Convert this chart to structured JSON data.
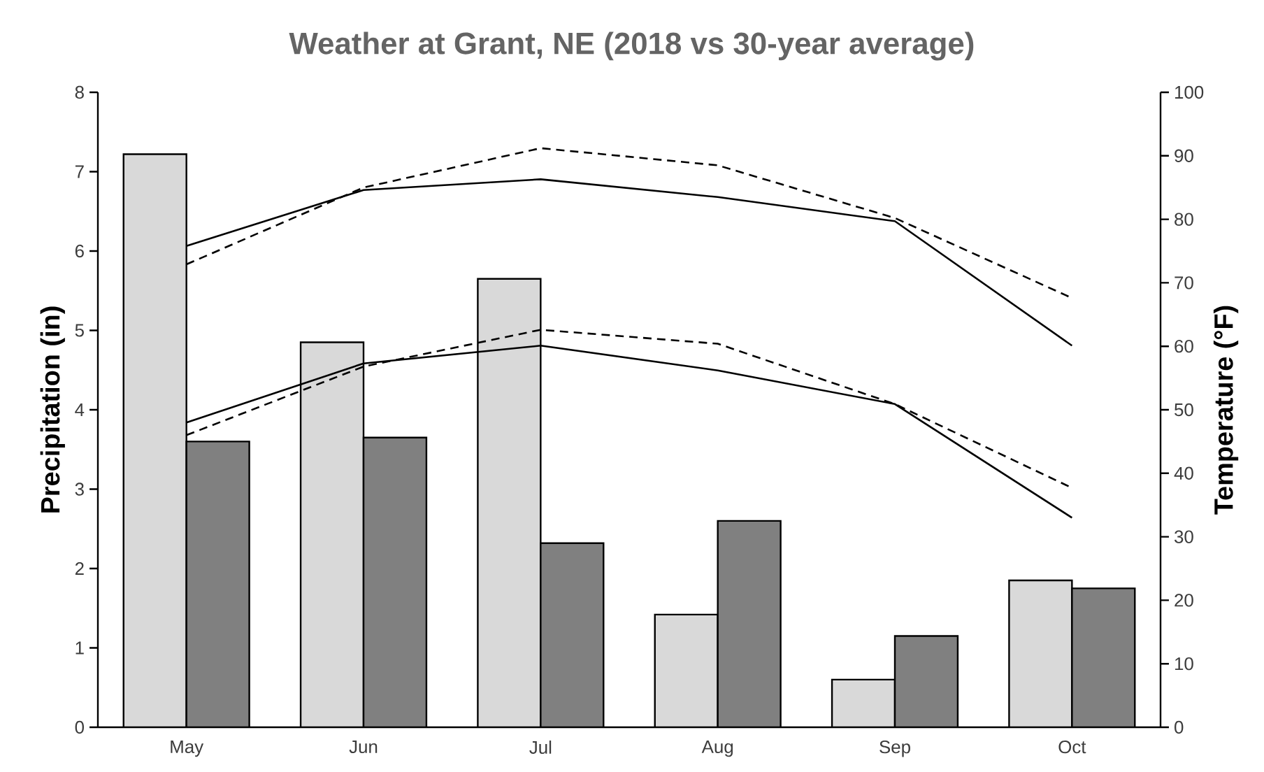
{
  "chart_data": {
    "type": "bar",
    "title": "Weather at Grant, NE (2018 vs 30-year average)",
    "ylabel": "Precipitation (in)",
    "y2label": "Temperature (°F)",
    "categories": [
      "May",
      "Jun",
      "Jul",
      "Aug",
      "Sep",
      "Oct"
    ],
    "series": [
      {
        "color": "#d9d9d9",
        "values": [
          7.22,
          4.85,
          5.65,
          1.42,
          0.6,
          1.85
        ]
      },
      {
        "color": "#808080",
        "values": [
          3.6,
          3.65,
          2.32,
          2.6,
          1.15,
          1.75
        ]
      },
      {
        "type": "line",
        "axis": "y2",
        "color": "#000000",
        "line_style": "solid",
        "values": [
          75.8,
          84.6,
          86.3,
          83.5,
          79.7,
          60.1
        ]
      },
      {
        "type": "line",
        "axis": "y2",
        "color": "#000000",
        "line_style": "dashed",
        "values": [
          72.9,
          85.0,
          91.2,
          88.5,
          80.2,
          67.6
        ]
      },
      {
        "type": "line",
        "axis": "y2",
        "color": "#000000",
        "line_style": "solid",
        "values": [
          48.0,
          57.3,
          60.1,
          56.2,
          50.9,
          33.0
        ]
      },
      {
        "type": "line",
        "axis": "y2",
        "color": "#000000",
        "line_style": "dashed",
        "values": [
          46.0,
          56.8,
          62.6,
          60.4,
          50.9,
          37.7
        ]
      }
    ],
    "ylim": [
      0,
      8
    ],
    "yticks": [
      0,
      1,
      2,
      3,
      4,
      5,
      6,
      7,
      8
    ],
    "y2lim": [
      0,
      100
    ],
    "y2ticks": [
      0,
      10,
      20,
      30,
      40,
      50,
      60,
      70,
      80,
      90,
      100
    ],
    "grid": false
  }
}
